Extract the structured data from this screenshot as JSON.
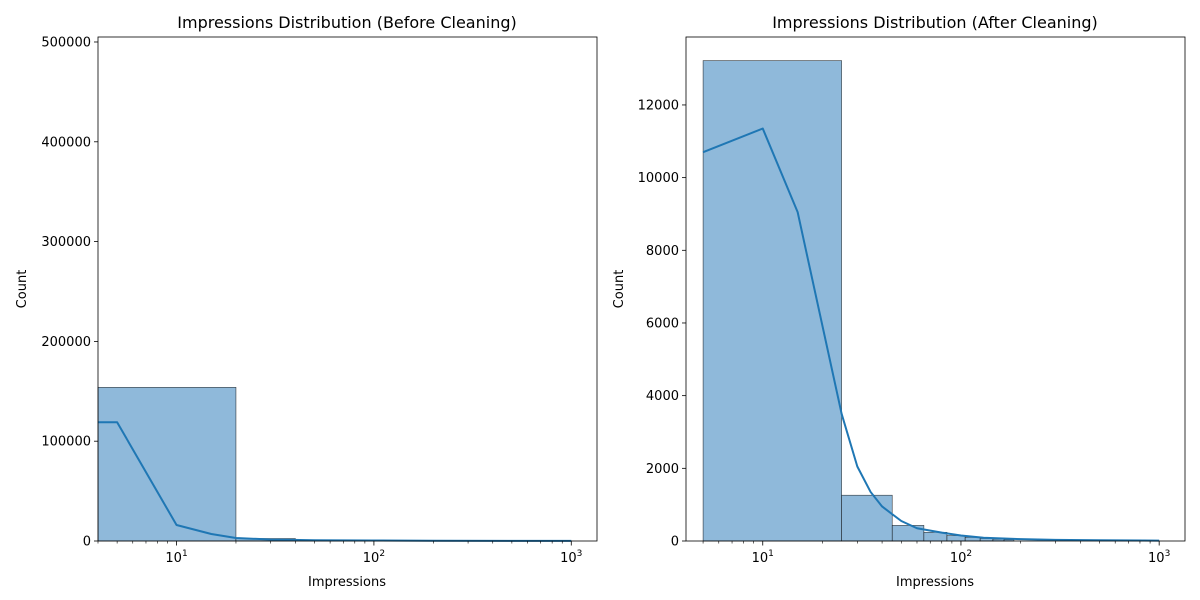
{
  "chart_data": [
    {
      "type": "histogram",
      "title": "Impressions Distribution (Before Cleaning)",
      "xlabel": "Impressions",
      "ylabel": "Count",
      "x_scale": "log",
      "xlim": [
        4.0,
        1350
      ],
      "ylim": [
        0,
        505000
      ],
      "x_ticks": [
        10,
        100,
        1000
      ],
      "x_tick_labels": [
        [
          "10",
          "1"
        ],
        [
          "10",
          "2"
        ],
        [
          "10",
          "3"
        ]
      ],
      "y_ticks": [
        0,
        100000,
        200000,
        300000,
        400000,
        500000
      ],
      "y_tick_labels": [
        "0",
        "100000",
        "200000",
        "300000",
        "400000",
        "500000"
      ],
      "bar_color": "#8fb9da",
      "line_color": "#1f77b4",
      "bins": [
        {
          "start": 1,
          "end": 20,
          "count": 154000
        },
        {
          "start": 20,
          "end": 40,
          "count": 2500
        },
        {
          "start": 40,
          "end": 60,
          "count": 900
        },
        {
          "start": 60,
          "end": 80,
          "count": 500
        },
        {
          "start": 80,
          "end": 100,
          "count": 300
        },
        {
          "start": 100,
          "end": 200,
          "count": 300
        },
        {
          "start": 200,
          "end": 1000,
          "count": 150
        }
      ],
      "kde": {
        "x": [
          4,
          5,
          10,
          15,
          20,
          30,
          50,
          100,
          200,
          500,
          1000
        ],
        "y": [
          119000,
          119000,
          16000,
          7000,
          3000,
          1500,
          800,
          500,
          300,
          150,
          100
        ]
      }
    },
    {
      "type": "histogram",
      "title": "Impressions Distribution (After Cleaning)",
      "xlabel": "Impressions",
      "ylabel": "Count",
      "x_scale": "log",
      "xlim": [
        4.1,
        1350
      ],
      "ylim": [
        0,
        13870
      ],
      "x_ticks": [
        10,
        100,
        1000
      ],
      "x_tick_labels": [
        [
          "10",
          "1"
        ],
        [
          "10",
          "2"
        ],
        [
          "10",
          "3"
        ]
      ],
      "y_ticks": [
        0,
        2000,
        4000,
        6000,
        8000,
        10000,
        12000
      ],
      "y_tick_labels": [
        "0",
        "2000",
        "4000",
        "6000",
        "8000",
        "10000",
        "12000"
      ],
      "bar_color": "#8fb9da",
      "line_color": "#1f77b4",
      "bins": [
        {
          "start": 5,
          "end": 25,
          "count": 13220
        },
        {
          "start": 25,
          "end": 45,
          "count": 1260
        },
        {
          "start": 45,
          "end": 65,
          "count": 430
        },
        {
          "start": 65,
          "end": 85,
          "count": 240
        },
        {
          "start": 85,
          "end": 105,
          "count": 150
        },
        {
          "start": 105,
          "end": 125,
          "count": 100
        },
        {
          "start": 125,
          "end": 145,
          "count": 70
        },
        {
          "start": 145,
          "end": 165,
          "count": 50
        },
        {
          "start": 165,
          "end": 185,
          "count": 40
        }
      ],
      "kde": {
        "x": [
          5,
          10,
          15,
          25,
          30,
          35,
          40,
          50,
          60,
          80,
          100,
          130,
          200,
          300,
          500,
          1000
        ],
        "y": [
          10700,
          11350,
          9050,
          3500,
          2050,
          1350,
          950,
          550,
          350,
          230,
          150,
          90,
          50,
          30,
          20,
          10
        ]
      }
    }
  ]
}
